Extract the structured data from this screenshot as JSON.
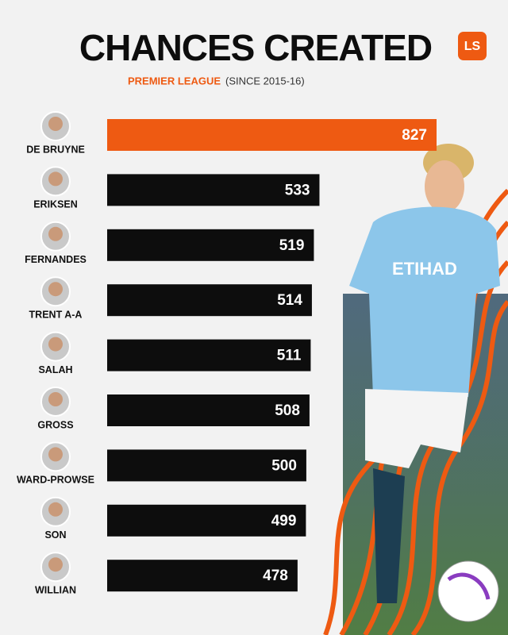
{
  "brand": "LS",
  "chart_data": {
    "type": "bar",
    "orientation": "horizontal",
    "title": "CHANCES CREATED",
    "subtitle": "PREMIER LEAGUE",
    "subtitle_note": "(SINCE 2015-16)",
    "categories": [
      "DE BRUYNE",
      "ERIKSEN",
      "FERNANDES",
      "TRENT A-A",
      "SALAH",
      "GROSS",
      "WARD-PROWSE",
      "SON",
      "WILLIAN"
    ],
    "values": [
      827,
      533,
      519,
      514,
      511,
      508,
      500,
      499,
      478
    ],
    "colors": [
      "#ee5a12",
      "#0d0d0d",
      "#0d0d0d",
      "#0d0d0d",
      "#0d0d0d",
      "#0d0d0d",
      "#0d0d0d",
      "#0d0d0d",
      "#0d0d0d"
    ],
    "label_colors": [
      "#ee5a12",
      "#111111",
      "#111111",
      "#111111",
      "#111111",
      "#111111",
      "#111111",
      "#111111",
      "#111111"
    ]
  }
}
